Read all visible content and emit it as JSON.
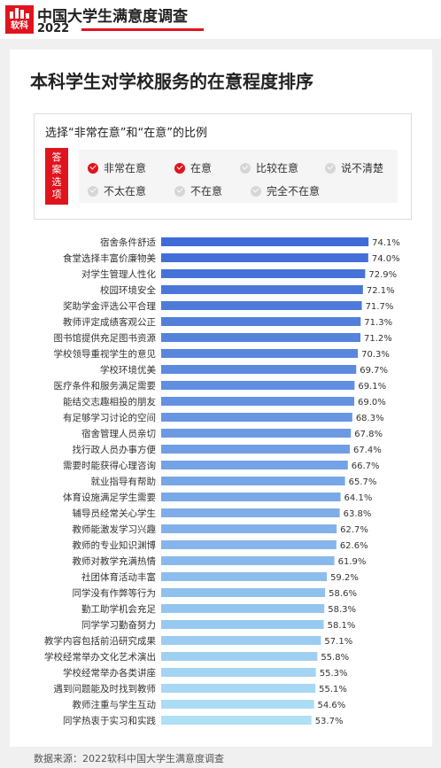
{
  "header": {
    "brand": "中国大学生满意度调查",
    "year": "2022",
    "logo_text": "软科"
  },
  "title": "本科学生对学校服务的在意程度排序",
  "legend": {
    "title": "选择“非常在意”和“在意”的比例",
    "badge_lines": [
      "答",
      "案",
      "选",
      "项"
    ],
    "options": [
      {
        "label": "非常在意",
        "checked": true
      },
      {
        "label": "在意",
        "checked": true
      },
      {
        "label": "比较在意",
        "checked": false
      },
      {
        "label": "说不清楚",
        "checked": false
      },
      {
        "label": "不太在意",
        "checked": false
      },
      {
        "label": "不在意",
        "checked": false
      },
      {
        "label": "完全不在意",
        "checked": false
      }
    ]
  },
  "colors": {
    "accent": "#e0141e",
    "bar_start": "#3f6bd6",
    "bar_end": "#aee0f6",
    "card": "#ffffff",
    "page_bg": "#f0f0f0"
  },
  "chart_data": {
    "type": "bar",
    "orientation": "horizontal",
    "categories": [
      "宿舍条件舒适",
      "食堂选择丰富价廉物美",
      "对学生管理人性化",
      "校园环境安全",
      "奖助学金评选公平合理",
      "教师评定成绩客观公正",
      "图书馆提供充足图书资源",
      "学校领导重视学生的意见",
      "学校环境优美",
      "医疗条件和服务满足需要",
      "能结交志趣相投的朋友",
      "有足够学习讨论的空间",
      "宿舍管理人员亲切",
      "找行政人员办事方便",
      "需要时能获得心理咨询",
      "就业指导有帮助",
      "体育设施满足学生需要",
      "辅导员经常关心学生",
      "教师能激发学习兴趣",
      "教师的专业知识渊博",
      "教师对教学充满热情",
      "社团体育活动丰富",
      "同学没有作弊等行为",
      "勤工助学机会充足",
      "同学学习勤奋努力",
      "教学内容包括前沿研究成果",
      "学校经常举办文化艺术演出",
      "学校经常举办各类讲座",
      "遇到问题能及时找到教师",
      "教师注重与学生互动",
      "同学热衷于实习和实践"
    ],
    "values": [
      74.1,
      74.0,
      72.9,
      72.1,
      71.7,
      71.3,
      71.2,
      70.3,
      69.7,
      69.1,
      69.0,
      68.3,
      67.8,
      67.4,
      66.7,
      65.7,
      64.1,
      63.8,
      62.7,
      62.6,
      61.9,
      59.2,
      58.6,
      58.3,
      58.1,
      57.1,
      55.8,
      55.3,
      55.1,
      54.6,
      53.7
    ],
    "value_labels": [
      "74.1%",
      "74.0%",
      "72.9%",
      "72.1%",
      "71.7%",
      "71.3%",
      "71.2%",
      "70.3%",
      "69.7%",
      "69.1%",
      "69.0%",
      "68.3%",
      "67.8%",
      "67.4%",
      "66.7%",
      "65.7%",
      "64.1%",
      "63.8%",
      "62.7%",
      "62.6%",
      "61.9%",
      "59.2%",
      "58.6%",
      "58.3%",
      "58.1%",
      "57.1%",
      "55.8%",
      "55.3%",
      "55.1%",
      "54.6%",
      "53.7%"
    ],
    "title": "",
    "xlabel": "",
    "ylabel": "",
    "xlim": [
      0,
      100
    ],
    "grid": false
  },
  "footer": "数据来源：2022软科中国大学生满意度调查"
}
